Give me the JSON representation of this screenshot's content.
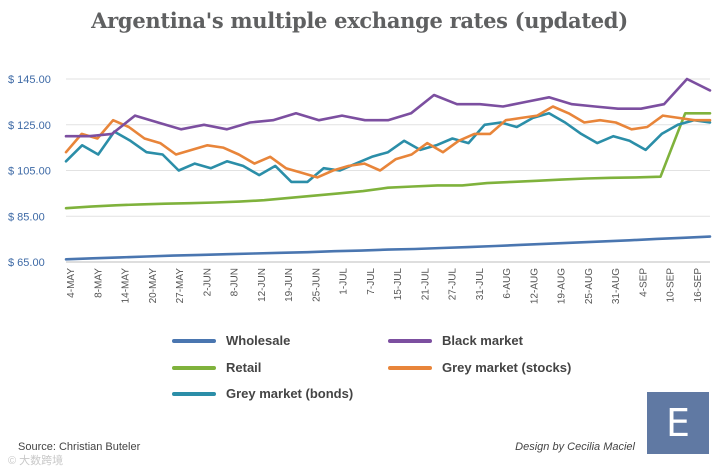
{
  "chart_data": {
    "type": "line",
    "title": "Argentina's multiple exchange rates (updated)",
    "xlabel": "",
    "ylabel": "",
    "ylim": [
      65,
      145
    ],
    "yticks": [
      65,
      85,
      105,
      125,
      145
    ],
    "ytick_labels": [
      "$ 65.00",
      "$ 85.00",
      "$ 105.00",
      "$ 125.00",
      "$ 145.00"
    ],
    "x_tick_labels": [
      "4-MAY",
      "8-MAY",
      "14-MAY",
      "20-MAY",
      "27-MAY",
      "2-JUN",
      "8-JUN",
      "12-JUN",
      "19-JUN",
      "25-JUN",
      "1-JUL",
      "7-JUL",
      "15-JUL",
      "21-JUL",
      "27-JUL",
      "31-JUL",
      "6-AUG",
      "12-AUG",
      "19-AUG",
      "25-AUG",
      "31-AUG",
      "4-SEP",
      "10-SEP",
      "16-SEP"
    ],
    "grid": true,
    "legend_position": "bottom",
    "series": [
      {
        "name": "Wholesale",
        "color": "#4a76b0",
        "values": [
          66.2,
          66.6,
          67,
          67.4,
          67.8,
          68.1,
          68.4,
          68.7,
          69,
          69.3,
          69.7,
          70,
          70.4,
          70.7,
          71.1,
          71.5,
          72,
          72.5,
          73,
          73.5,
          74,
          74.5,
          75.1,
          75.6,
          76.1
        ]
      },
      {
        "name": "Black market",
        "color": "#7c4fa0",
        "values": [
          120,
          120,
          121,
          129,
          126,
          123,
          125,
          123,
          126,
          127,
          130,
          127,
          129,
          127,
          127,
          130,
          138,
          134,
          134,
          133,
          135,
          137,
          134,
          133,
          132,
          132,
          134,
          145,
          140
        ]
      },
      {
        "name": "Retail",
        "color": "#7fb23c",
        "values": [
          88.5,
          89.2,
          89.8,
          90.2,
          90.5,
          90.7,
          91,
          91.4,
          92,
          93,
          94,
          95,
          96,
          97.5,
          98,
          98.5,
          98.5,
          99.5,
          100,
          100.5,
          101,
          101.5,
          101.8,
          102,
          102.3,
          130,
          130
        ]
      },
      {
        "name": "Grey market (stocks)",
        "color": "#e8853a",
        "values": [
          113,
          121,
          119,
          127,
          124,
          119,
          117,
          112,
          114,
          116,
          115,
          112,
          108,
          111,
          106,
          104,
          102,
          105,
          107,
          108,
          105,
          110,
          112,
          117,
          113,
          118,
          121,
          121,
          127,
          128,
          129,
          133,
          130,
          126,
          127,
          126,
          123,
          124,
          129,
          128,
          127,
          127
        ]
      },
      {
        "name": "Grey market (bonds)",
        "color": "#2b8ea8",
        "values": [
          109,
          116,
          112,
          122,
          118,
          113,
          112,
          105,
          108,
          106,
          109,
          107,
          103,
          107,
          100,
          100,
          106,
          105,
          108,
          111,
          113,
          118,
          114,
          116,
          119,
          117,
          125,
          126,
          124,
          128,
          130,
          126,
          121,
          117,
          120,
          118,
          114,
          121,
          125,
          127,
          126
        ]
      }
    ]
  },
  "legend": {
    "wholesale": "Wholesale",
    "black_market": "Black market",
    "retail": "Retail",
    "grey_stocks": "Grey market (stocks)",
    "grey_bonds": "Grey market (bonds)"
  },
  "footer": {
    "source": "Source: Christian Buteler",
    "credit": "Design by Cecilia Maciel",
    "logo_letter": "E",
    "watermark": "© 大数跨境"
  }
}
